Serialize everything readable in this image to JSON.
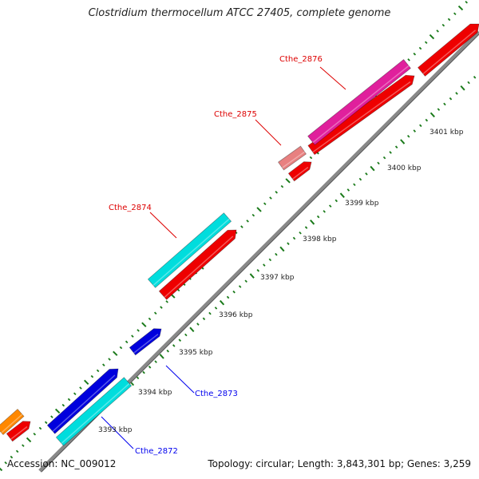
{
  "title": "Clostridium thermocellum ATCC 27405, complete genome",
  "footer": {
    "accession": "Accession: NC_009012",
    "summary": "Topology: circular; Length: 3,843,301 bp; Genes: 3,259"
  },
  "tick_labels": [
    "3393 kbp",
    "3394 kbp",
    "3395 kbp",
    "3396 kbp",
    "3397 kbp",
    "3398 kbp",
    "3399 kbp",
    "3400 kbp",
    "3401 kbp"
  ],
  "gene_labels": [
    {
      "text": "Cthe_2876",
      "color": "#dd0000"
    },
    {
      "text": "Cthe_2875",
      "color": "#dd0000"
    },
    {
      "text": "Cthe_2874",
      "color": "#dd0000"
    },
    {
      "text": "Cthe_2873",
      "color": "#0000ee"
    },
    {
      "text": "Cthe_2872",
      "color": "#0000ee"
    }
  ],
  "colors": {
    "backbone": "#888888",
    "tick_dots": "#1a7a1a",
    "cds_forward": "#ee0000",
    "magenta": "#e0209c",
    "salmon": "#e88080",
    "cyan": "#00dddd",
    "blue": "#0000dd",
    "orange": "#ff8800"
  }
}
